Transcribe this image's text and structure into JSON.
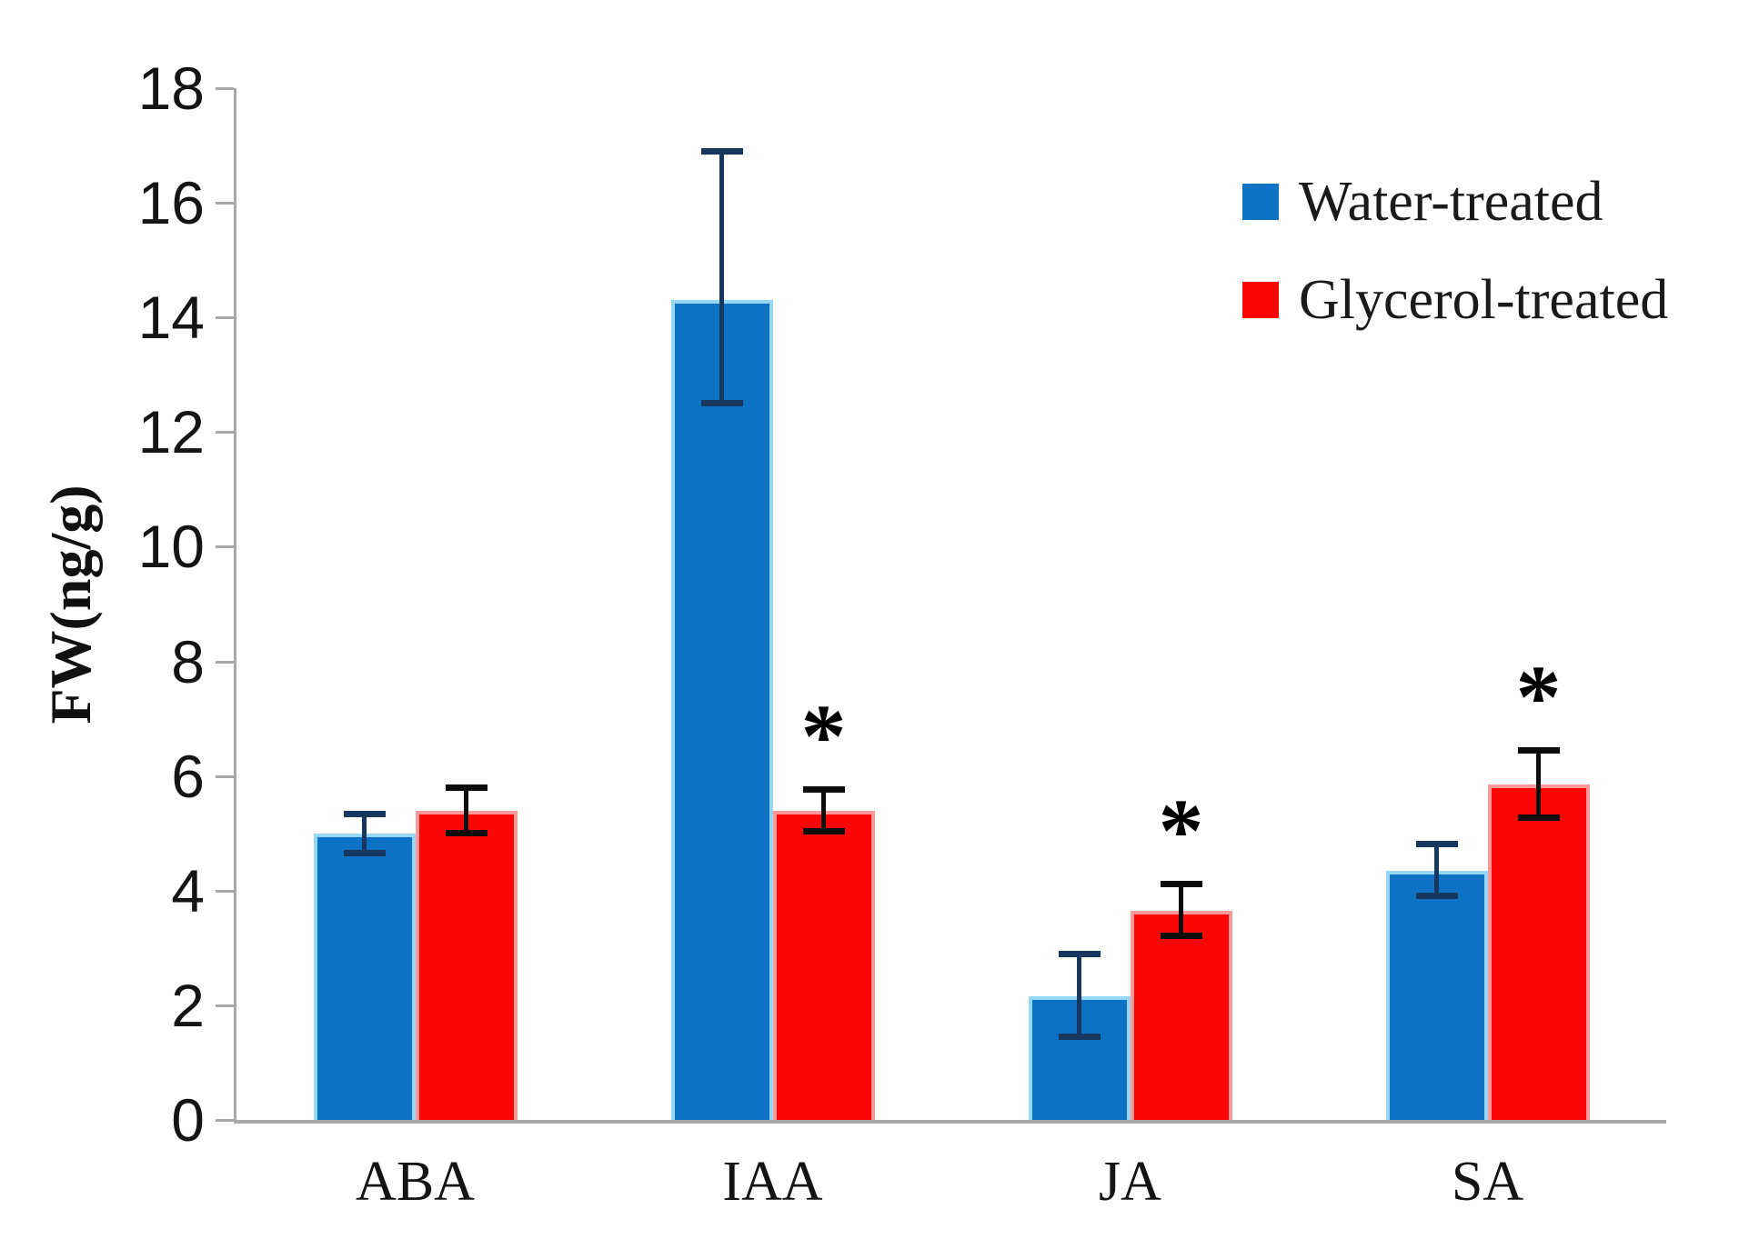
{
  "chart_data": {
    "type": "bar",
    "title": "",
    "xlabel": "",
    "ylabel": "FW(ng/g)",
    "categories": [
      "ABA",
      "IAA",
      "JA",
      "SA"
    ],
    "ylim": [
      0,
      18
    ],
    "yticks": [
      0,
      2,
      4,
      6,
      8,
      10,
      12,
      14,
      16,
      18
    ],
    "grid": false,
    "legend_position": "upper-right",
    "significance_marker": "*",
    "axis_color": "#a8a8a8",
    "series": [
      {
        "name": "Water-treated",
        "color": "#0d72c4",
        "edge_color": "#96d7f7",
        "error_color": "#17375e",
        "values": [
          5.0,
          14.3,
          2.15,
          4.35
        ],
        "errors_up": [
          0.35,
          2.6,
          0.75,
          0.47
        ],
        "errors_down": [
          0.35,
          1.8,
          0.7,
          0.45
        ],
        "significance": [
          "",
          "",
          "",
          ""
        ]
      },
      {
        "name": "Glycerol-treated",
        "color": "#fb0505",
        "edge_color": "#ff9898",
        "error_color": "#0d0d0d",
        "values": [
          5.4,
          5.4,
          3.65,
          5.85
        ],
        "errors_up": [
          0.4,
          0.37,
          0.48,
          0.6
        ],
        "errors_down": [
          0.4,
          0.37,
          0.45,
          0.58
        ],
        "significance": [
          "",
          "*",
          "*",
          "*"
        ]
      }
    ]
  }
}
